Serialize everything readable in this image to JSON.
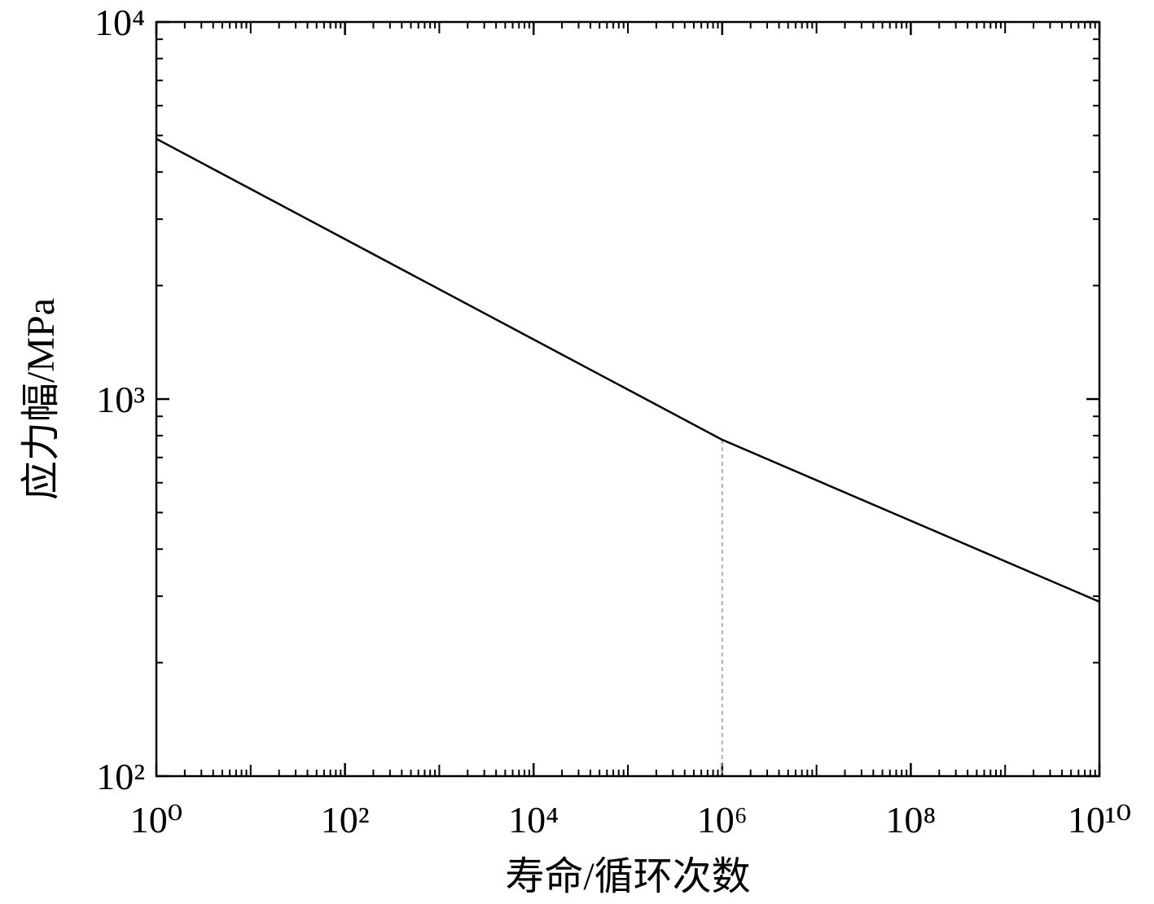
{
  "chart_data": {
    "type": "line",
    "x_label": "寿命/循环次数",
    "y_label": "应力幅/MPa",
    "x": [
      1,
      1000000,
      10000000000
    ],
    "values": [
      4900,
      780,
      290
    ],
    "color": "#000000",
    "log_x": true,
    "log_y": true,
    "xlim": [
      1,
      10000000000
    ],
    "ylim": [
      100,
      10000
    ],
    "xticks": [
      {
        "value": 1,
        "label": "10⁰"
      },
      {
        "value": 100,
        "label": "10²"
      },
      {
        "value": 10000,
        "label": "10⁴"
      },
      {
        "value": 1000000,
        "label": "10⁶"
      },
      {
        "value": 100000000,
        "label": "10⁸"
      },
      {
        "value": 10000000000,
        "label": "10¹⁰"
      }
    ],
    "yticks": [
      {
        "value": 100,
        "label": "10²"
      },
      {
        "value": 1000,
        "label": "10³"
      },
      {
        "value": 10000,
        "label": "10⁴"
      }
    ],
    "reference_line": {
      "x": 1000000,
      "color": "#999999"
    }
  }
}
